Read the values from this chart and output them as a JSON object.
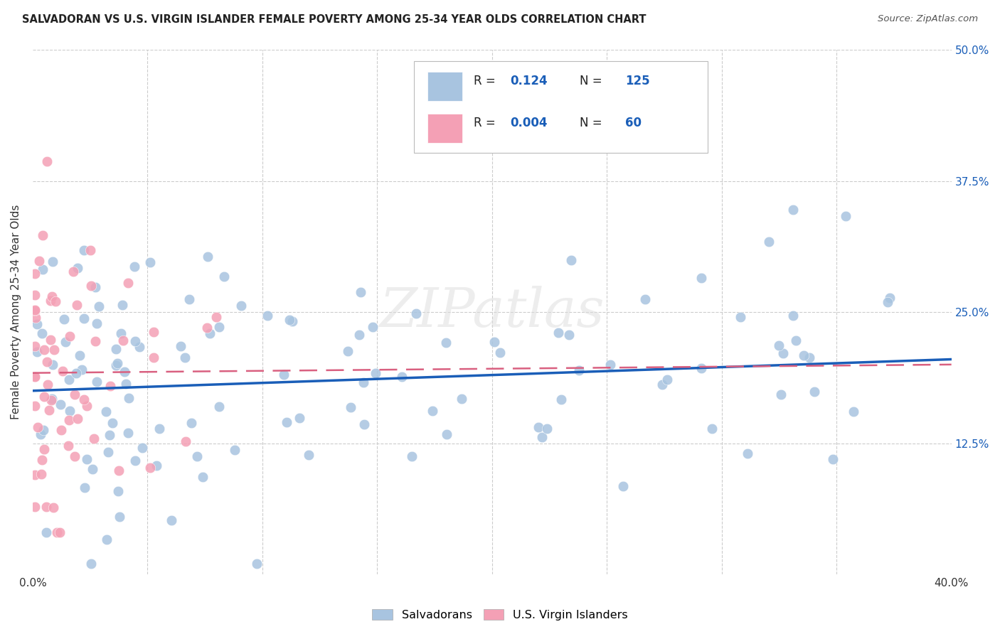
{
  "title": "SALVADORAN VS U.S. VIRGIN ISLANDER FEMALE POVERTY AMONG 25-34 YEAR OLDS CORRELATION CHART",
  "source": "Source: ZipAtlas.com",
  "ylabel": "Female Poverty Among 25-34 Year Olds",
  "x_min": 0.0,
  "x_max": 0.4,
  "y_min": 0.0,
  "y_max": 0.5,
  "color_blue": "#a8c4e0",
  "color_pink": "#f4a0b5",
  "line_blue": "#1a5eb8",
  "line_pink": "#d96080",
  "background_color": "#ffffff",
  "grid_color": "#cccccc",
  "watermark": "ZIPatlas",
  "legend_text_color": "#1a5eb8",
  "legend_label_color": "#222222",
  "r1": "0.124",
  "n1": "125",
  "r2": "0.004",
  "n2": "60",
  "salv_legend": "Salvadorans",
  "vi_legend": "U.S. Virgin Islanders"
}
